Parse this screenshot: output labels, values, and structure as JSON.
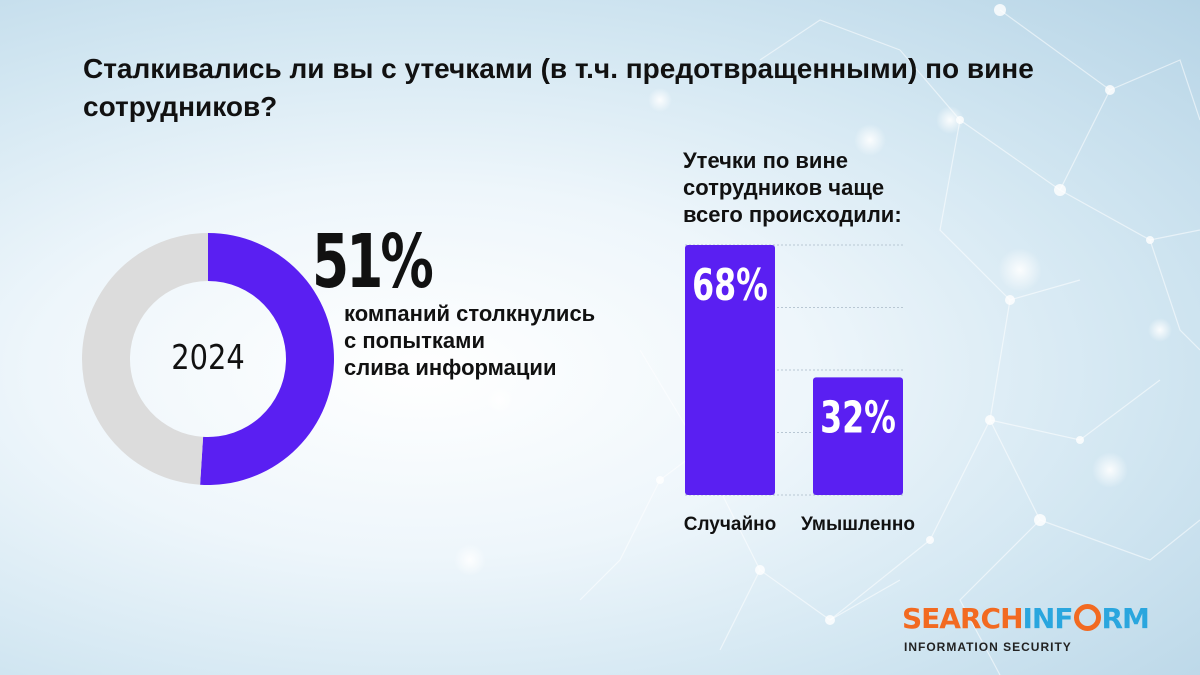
{
  "title": "Сталкивались ли вы с утечками (в т.ч. предотвращенными) по вине сотрудников?",
  "headline": {
    "percent": "51%",
    "text_lines": [
      "компаний столкнулись",
      "с попытками",
      "слива информации"
    ]
  },
  "bar_title_lines": [
    "Утечки по вине",
    "сотрудников чаще",
    "всего происходили:"
  ],
  "logo": {
    "part1": "SEARCH",
    "part2a": "INF",
    "part2b": "RM",
    "tagline": "INFORMATION SECURITY"
  },
  "colors": {
    "accent": "#5a1ff2",
    "grey": "#dcdcdc",
    "orange": "#f26a21",
    "blue": "#2aa6de"
  },
  "chart_data": [
    {
      "type": "pie",
      "center_label": "2024",
      "slices": [
        {
          "value": 51,
          "color": "#5a1ff2"
        },
        {
          "value": 49,
          "color": "#dcdcdc"
        }
      ]
    },
    {
      "type": "bar",
      "categories": [
        "Случайно",
        "Умышленно"
      ],
      "values": [
        68,
        32
      ],
      "data_labels": [
        "68%",
        "32%"
      ],
      "ylim": [
        0,
        68
      ],
      "grid": true
    }
  ]
}
